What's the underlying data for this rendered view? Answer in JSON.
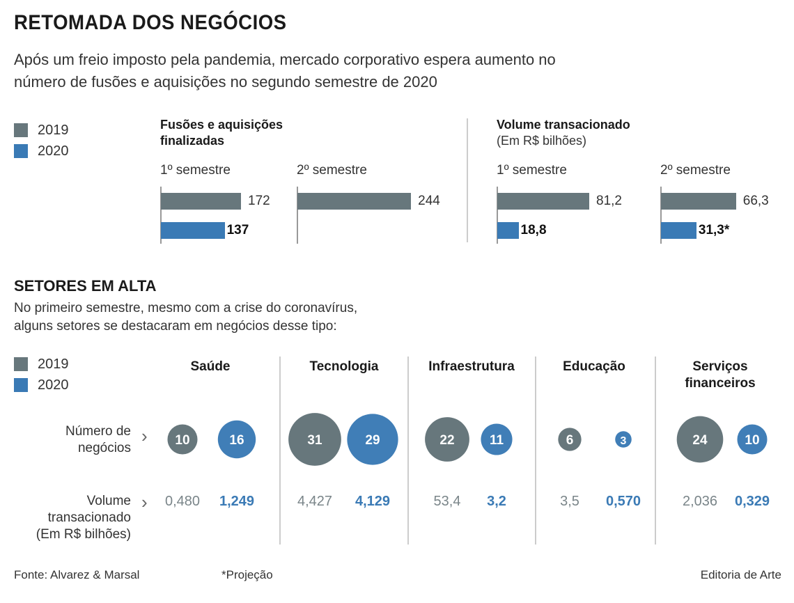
{
  "header": {
    "title": "RETOMADA DOS NEGÓCIOS",
    "subtitle_line1": "Após um freio imposto pela pandemia, mercado corporativo espera aumento no",
    "subtitle_line2": "número de fusões e aquisições no segundo semestre de 2020"
  },
  "colors": {
    "y2019": "#67777c",
    "y2020": "#3a7ab5"
  },
  "legend": {
    "items": [
      {
        "label": "2019"
      },
      {
        "label": "2020"
      }
    ]
  },
  "section_setores": {
    "title": "SETORES EM ALTA",
    "desc_line1": "No primeiro semestre, mesmo com a crise do coronavírus,",
    "desc_line2": "alguns setores se destacaram em negócios desse tipo:",
    "row1_label_line1": "Número de",
    "row1_label_line2": "negócios",
    "row2_label_line1": "Volume",
    "row2_label_line2": "transacionado",
    "row2_label_line3": "(Em R$ bilhões)",
    "chevron": "chevron-right-icon"
  },
  "footer": {
    "source": "Fonte: Alvarez & Marsal",
    "note": "*Projeção",
    "credit": "Editoria de Arte"
  },
  "chart_data": [
    {
      "type": "bar",
      "orientation": "horizontal",
      "title_line1": "Fusões e aquisições",
      "title_line2": "finalizadas",
      "panels": [
        {
          "label": "1º semestre",
          "series": [
            {
              "name": "2019",
              "value": 172,
              "label": "172"
            },
            {
              "name": "2020",
              "value": 137,
              "label": "137"
            }
          ]
        },
        {
          "label": "2º semestre",
          "series": [
            {
              "name": "2019",
              "value": 244,
              "label": "244"
            }
          ]
        }
      ]
    },
    {
      "type": "bar",
      "orientation": "horizontal",
      "title_line1": "Volume transacionado",
      "title_line2": "(Em R$ bilhões)",
      "panels": [
        {
          "label": "1º semestre",
          "series": [
            {
              "name": "2019",
              "value": 81.2,
              "label": "81,2"
            },
            {
              "name": "2020",
              "value": 18.8,
              "label": "18,8"
            }
          ]
        },
        {
          "label": "2º semestre",
          "series": [
            {
              "name": "2019",
              "value": 66.3,
              "label": "66,3"
            },
            {
              "name": "2020",
              "value": 31.3,
              "label": "31,3*"
            }
          ]
        }
      ]
    },
    {
      "type": "bubble",
      "title": "SETORES EM ALTA",
      "sectors": [
        {
          "name_line1": "Saúde",
          "name_line2": "",
          "deals_2019": 10,
          "deals_2020": 16,
          "volume_2019": "0,480",
          "volume_2020": "1,249"
        },
        {
          "name_line1": "Tecnologia",
          "name_line2": "",
          "deals_2019": 31,
          "deals_2020": 29,
          "volume_2019": "4,427",
          "volume_2020": "4,129"
        },
        {
          "name_line1": "Infraestrutura",
          "name_line2": "",
          "deals_2019": 22,
          "deals_2020": 11,
          "volume_2019": "53,4",
          "volume_2020": "3,2"
        },
        {
          "name_line1": "Educação",
          "name_line2": "",
          "deals_2019": 6,
          "deals_2020": 3,
          "volume_2019": "3,5",
          "volume_2020": "0,570"
        },
        {
          "name_line1": "Serviços",
          "name_line2": "financeiros",
          "deals_2019": 24,
          "deals_2020": 10,
          "volume_2019": "2,036",
          "volume_2020": "0,329"
        }
      ]
    }
  ]
}
